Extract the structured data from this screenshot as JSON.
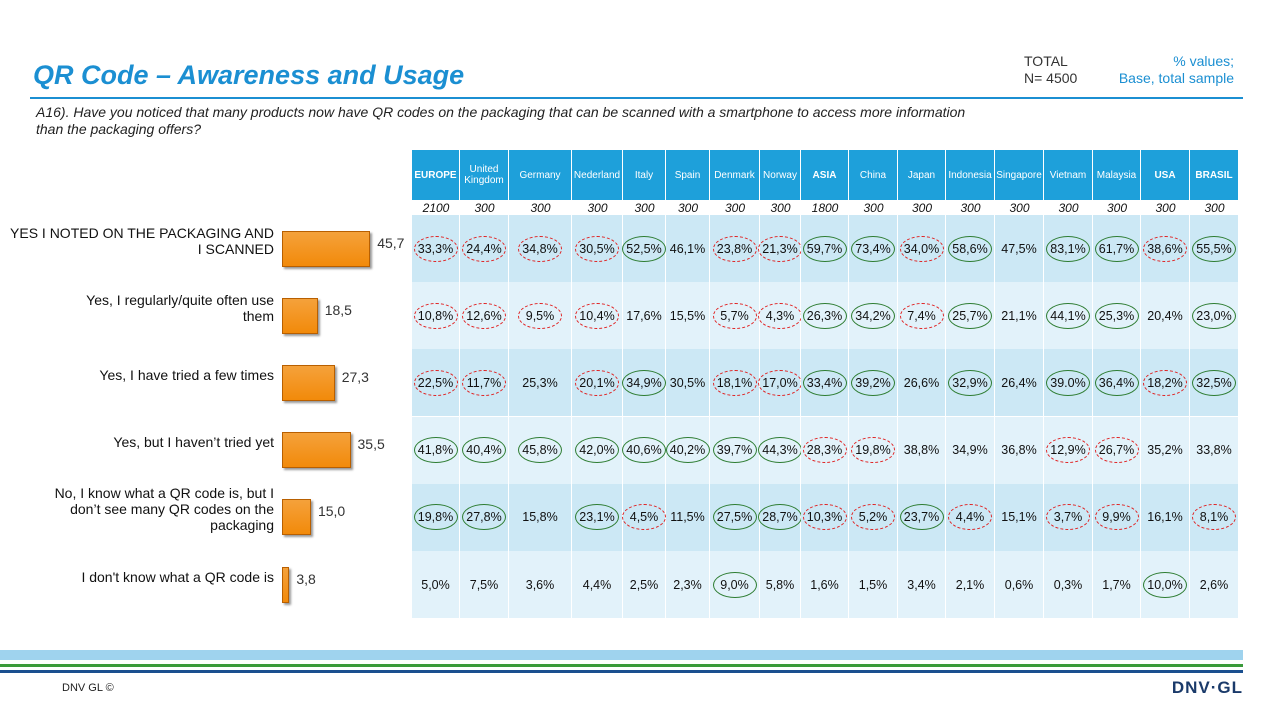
{
  "header": {
    "title": "QR Code – Awareness and Usage",
    "total": "TOTAL",
    "n": "N= 4500",
    "values_note": "% values;",
    "base_note": "Base, total sample"
  },
  "question": "A16). Have you noticed that many products now have QR codes on the packaging that can be scanned with a smartphone to access more information than the packaging offers?",
  "chart_data": {
    "type": "hbar",
    "color": "#f28a0a",
    "categories": [
      [
        "YES I NOTED ON THE PACKAGING AND",
        "I SCANNED"
      ],
      [
        "Yes, I regularly/quite often use",
        "them"
      ],
      [
        "Yes, I have tried a few times"
      ],
      [
        "Yes, but I haven’t tried yet"
      ],
      [
        "No, I know what a QR code is, but I",
        "don’t see many QR codes on the",
        "packaging"
      ],
      [
        "I don't know what a QR code is"
      ]
    ],
    "values": [
      45.7,
      18.5,
      27.3,
      35.5,
      15.0,
      3.8
    ],
    "value_labels": [
      "45,7",
      "18,5",
      "27,3",
      "35,5",
      "15,0",
      "3,8"
    ]
  },
  "table": {
    "columns": [
      {
        "name": "EUROPE",
        "base": 2100,
        "bold": true
      },
      {
        "name": "United Kingdom",
        "base": 300
      },
      {
        "name": "Germany",
        "base": 300
      },
      {
        "name": "Nederland",
        "base": 300
      },
      {
        "name": "Italy",
        "base": 300
      },
      {
        "name": "Spain",
        "base": 300
      },
      {
        "name": "Denmark",
        "base": 300
      },
      {
        "name": "Norway",
        "base": 300
      },
      {
        "name": "ASIA",
        "base": 1800,
        "bold": true
      },
      {
        "name": "China",
        "base": 300
      },
      {
        "name": "Japan",
        "base": 300
      },
      {
        "name": "Indonesia",
        "base": 300
      },
      {
        "name": "Singapore",
        "base": 300
      },
      {
        "name": "Vietnam",
        "base": 300
      },
      {
        "name": "Malaysia",
        "base": 300
      },
      {
        "name": "USA",
        "base": 300,
        "bold": true
      },
      {
        "name": "BRASIL",
        "base": 300,
        "bold": true
      }
    ],
    "rows": [
      {
        "cells": [
          "33,3%",
          "24,4%",
          "34,8%",
          "30,5%",
          "52,5%",
          "46,1%",
          "23,8%",
          "21,3%",
          "59,7%",
          "73,4%",
          "34,0%",
          "58,6%",
          "47,5%",
          "83,1%",
          "61,7%",
          "38,6%",
          "55,5%"
        ],
        "circles": [
          "red",
          "red",
          "red",
          "red",
          "green",
          null,
          "red",
          "red",
          "green",
          "green",
          "red",
          "green",
          null,
          "green",
          "green",
          "red",
          "green"
        ]
      },
      {
        "cells": [
          "10,8%",
          "12,6%",
          "9,5%",
          "10,4%",
          "17,6%",
          "15,5%",
          "5,7%",
          "4,3%",
          "26,3%",
          "34,2%",
          "7,4%",
          "25,7%",
          "21,1%",
          "44,1%",
          "25,3%",
          "20,4%",
          "23,0%"
        ],
        "circles": [
          "red",
          "red",
          "red",
          "red",
          null,
          null,
          "red",
          "red",
          "green",
          "green",
          "red",
          "green",
          null,
          "green",
          "green",
          null,
          "green"
        ]
      },
      {
        "cells": [
          "22,5%",
          "11,7%",
          "25,3%",
          "20,1%",
          "34,9%",
          "30,5%",
          "18,1%",
          "17,0%",
          "33,4%",
          "39,2%",
          "26,6%",
          "32,9%",
          "26,4%",
          "39.0%",
          "36,4%",
          "18,2%",
          "32,5%"
        ],
        "circles": [
          "red",
          "red",
          null,
          "red",
          "green",
          null,
          "red",
          "red",
          "green",
          "green",
          null,
          "green",
          null,
          "green",
          "green",
          "red",
          "green"
        ]
      },
      {
        "cells": [
          "41,8%",
          "40,4%",
          "45,8%",
          "42,0%",
          "40,6%",
          "40,2%",
          "39,7%",
          "44,3%",
          "28,3%",
          "19,8%",
          "38,8%",
          "34,9%",
          "36,8%",
          "12,9%",
          "26,7%",
          "35,2%",
          "33,8%"
        ],
        "circles": [
          "green",
          "green",
          "green",
          "green",
          "green",
          "green",
          "green",
          "green",
          "red",
          "red",
          null,
          null,
          null,
          "red",
          "red",
          null,
          null
        ]
      },
      {
        "cells": [
          "19,8%",
          "27,8%",
          "15,8%",
          "23,1%",
          "4,5%",
          "11,5%",
          "27,5%",
          "28,7%",
          "10,3%",
          "5,2%",
          "23,7%",
          "4,4%",
          "15,1%",
          "3,7%",
          "9,9%",
          "16,1%",
          "8,1%"
        ],
        "circles": [
          "green",
          "green",
          null,
          "green",
          "red",
          null,
          "green",
          "green",
          "red",
          "red",
          "green",
          "red",
          null,
          "red",
          "red",
          null,
          "red"
        ]
      },
      {
        "cells": [
          "5,0%",
          "7,5%",
          "3,6%",
          "4,4%",
          "2,5%",
          "2,3%",
          "9,0%",
          "5,8%",
          "1,6%",
          "1,5%",
          "3,4%",
          "2,1%",
          "0,6%",
          "0,3%",
          "1,7%",
          "10,0%",
          "2,6%"
        ],
        "circles": [
          null,
          null,
          null,
          null,
          null,
          null,
          "green",
          null,
          null,
          null,
          null,
          null,
          null,
          null,
          null,
          "green",
          null
        ]
      }
    ]
  },
  "footer": {
    "copyright": "DNV GL ©",
    "logo": "DNV·GL"
  }
}
